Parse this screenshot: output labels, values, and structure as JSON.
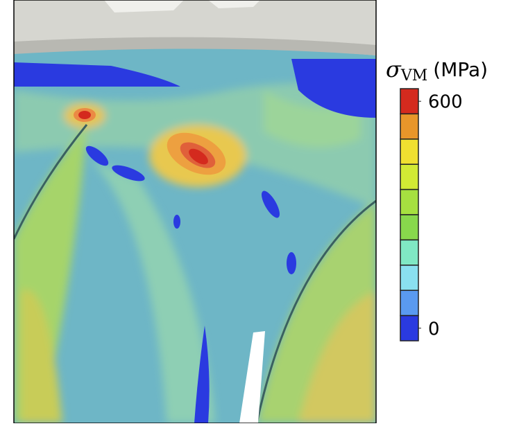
{
  "colorbar": {
    "label_symbol": "σ",
    "label_subscript": "VM",
    "label_unit": "(MPa)",
    "colors": [
      "#d42a1e",
      "#e8962a",
      "#f0e030",
      "#d2ea34",
      "#a6e040",
      "#88d84c",
      "#80e8c4",
      "#8ae0f0",
      "#5a9af0",
      "#2a3ae0"
    ],
    "ticks": [
      600,
      0
    ]
  }
}
